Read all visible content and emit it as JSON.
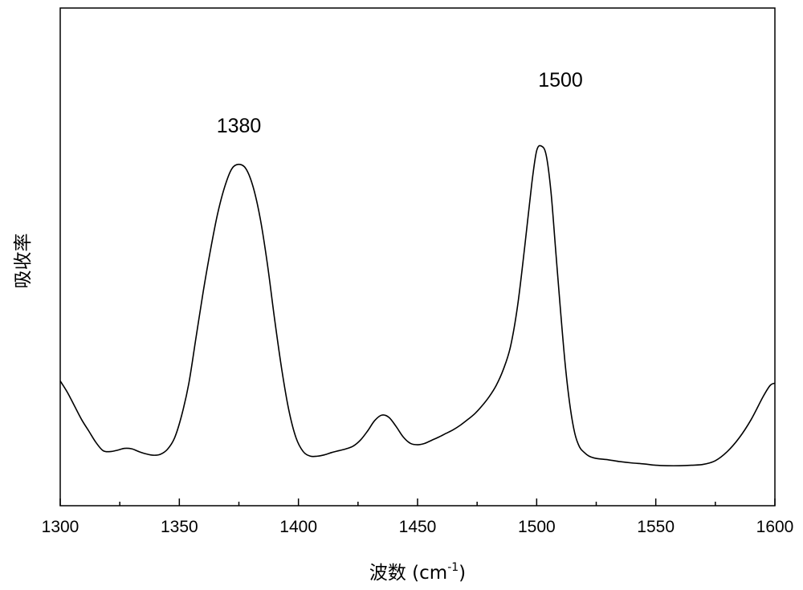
{
  "chart_data": {
    "type": "line",
    "title": "",
    "xlabel": "波数 (cm",
    "xlabel_superscript": "-1",
    "xlabel_suffix": ")",
    "ylabel": "吸收率",
    "xlim": [
      1300,
      1600
    ],
    "ylim": [
      0,
      1
    ],
    "xticks": [
      1300,
      1350,
      1400,
      1450,
      1500,
      1550,
      1600
    ],
    "xtick_labels": [
      "1300",
      "1350",
      "1400",
      "1450",
      "1500",
      "1550",
      "1600"
    ],
    "y_tick_labels_shown": false,
    "grid": false,
    "series": [
      {
        "x": [
          1300,
          1303,
          1306,
          1309,
          1312,
          1315,
          1318,
          1321,
          1324,
          1327,
          1330,
          1333,
          1336,
          1339,
          1342,
          1345,
          1348,
          1351,
          1354,
          1357,
          1360,
          1363,
          1366,
          1369,
          1372,
          1375,
          1378,
          1381,
          1384,
          1387,
          1390,
          1393,
          1396,
          1399,
          1402,
          1405,
          1408,
          1411,
          1414,
          1417,
          1420,
          1423,
          1426,
          1429,
          1432,
          1435,
          1438,
          1441,
          1444,
          1447,
          1450,
          1453,
          1456,
          1459,
          1462,
          1465,
          1468,
          1471,
          1474,
          1477,
          1480,
          1483,
          1486,
          1489,
          1492,
          1495,
          1498,
          1500,
          1502,
          1504,
          1506,
          1508,
          1510,
          1512,
          1514,
          1516,
          1518,
          1520,
          1522,
          1525,
          1530,
          1535,
          1540,
          1545,
          1550,
          1555,
          1560,
          1565,
          1570,
          1575,
          1580,
          1585,
          1590,
          1595,
          1598,
          1600
        ],
        "y": [
          0.235,
          0.21,
          0.18,
          0.15,
          0.125,
          0.1,
          0.082,
          0.08,
          0.083,
          0.087,
          0.086,
          0.08,
          0.075,
          0.072,
          0.074,
          0.085,
          0.11,
          0.16,
          0.23,
          0.33,
          0.43,
          0.52,
          0.6,
          0.66,
          0.7,
          0.71,
          0.7,
          0.66,
          0.59,
          0.49,
          0.37,
          0.26,
          0.17,
          0.11,
          0.08,
          0.07,
          0.07,
          0.073,
          0.078,
          0.082,
          0.086,
          0.092,
          0.105,
          0.125,
          0.148,
          0.16,
          0.155,
          0.135,
          0.112,
          0.098,
          0.095,
          0.098,
          0.105,
          0.112,
          0.12,
          0.128,
          0.138,
          0.15,
          0.163,
          0.18,
          0.2,
          0.225,
          0.26,
          0.31,
          0.4,
          0.53,
          0.67,
          0.74,
          0.75,
          0.73,
          0.65,
          0.52,
          0.39,
          0.27,
          0.18,
          0.12,
          0.09,
          0.078,
          0.07,
          0.065,
          0.062,
          0.058,
          0.055,
          0.053,
          0.05,
          0.049,
          0.049,
          0.05,
          0.052,
          0.06,
          0.08,
          0.11,
          0.15,
          0.2,
          0.225,
          0.23
        ]
      }
    ],
    "annotations": [
      {
        "text": "1380",
        "x": 1375,
        "y": 0.78
      },
      {
        "text": "1500",
        "x": 1510,
        "y": 0.88
      }
    ]
  }
}
